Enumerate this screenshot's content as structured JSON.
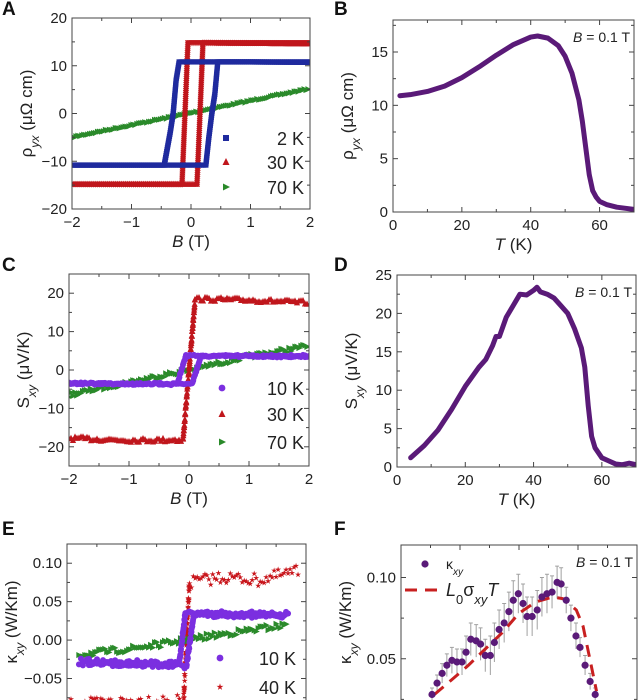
{
  "chart_data": [
    {
      "panel": "A",
      "type": "scatter",
      "xlabel": [
        {
          "t": "B",
          "i": 1
        },
        {
          "t": " (T)"
        }
      ],
      "ylabel": [
        {
          "t": "ρ"
        },
        {
          "t": "yx",
          "sub": 1,
          "i": 1
        },
        {
          "t": " (μΩ cm)"
        }
      ],
      "xlim": [
        -2,
        2
      ],
      "ylim": [
        -20,
        20
      ],
      "xticks": [
        -2,
        -1,
        0,
        1,
        2
      ],
      "xticklabels": [
        "−2",
        "−1",
        "0",
        "1",
        "2"
      ],
      "yticks": [
        -20,
        -10,
        0,
        10,
        20
      ],
      "yticklabels": [
        "−20",
        "−10",
        "0",
        "10",
        "20"
      ],
      "legend": [
        "2 K",
        "30 K",
        "70 K"
      ],
      "series": [
        {
          "name": "2 K",
          "color": "#1f2a9e",
          "branches": [
            {
              "x": [
                -2,
                -1,
                0,
                0.25,
                0.3,
                0.35,
                0.4,
                0.45,
                1,
                2
              ],
              "y": [
                -10.8,
                -10.8,
                -10.8,
                -10.8,
                -5,
                0,
                4,
                10.8,
                10.8,
                10.7
              ]
            },
            {
              "x": [
                2,
                1,
                0,
                -0.2,
                -0.25,
                -0.3,
                -0.35,
                -0.45,
                -1,
                -2
              ],
              "y": [
                10.8,
                10.8,
                10.8,
                10.8,
                7,
                0,
                -4,
                -10.8,
                -10.8,
                -10.8
              ]
            }
          ]
        },
        {
          "name": "30 K",
          "color": "#c0161c",
          "branches": [
            {
              "x": [
                -2,
                -1,
                0.0,
                0.1,
                0.2,
                1,
                2
              ],
              "y": [
                -14.8,
                -14.8,
                -14.8,
                -14.8,
                14.8,
                14.7,
                14.6
              ]
            },
            {
              "x": [
                2,
                1,
                0.05,
                -0.05,
                -0.15,
                -1,
                -2
              ],
              "y": [
                14.8,
                14.8,
                14.8,
                14.8,
                -14.8,
                -14.8,
                -14.8
              ]
            }
          ]
        },
        {
          "name": "70 K",
          "color": "#2a8a2a",
          "branches": [
            {
              "x": [
                -2,
                2
              ],
              "y": [
                -5,
                5.2
              ]
            }
          ]
        }
      ]
    },
    {
      "panel": "B",
      "type": "line",
      "xlabel": [
        {
          "t": "T",
          "i": 1
        },
        {
          "t": " (K)"
        }
      ],
      "ylabel": [
        {
          "t": "ρ"
        },
        {
          "t": "yx",
          "sub": 1,
          "i": 1
        },
        {
          "t": " (μΩ cm)"
        }
      ],
      "xlim": [
        0,
        70
      ],
      "ylim": [
        0,
        18
      ],
      "xticks": [
        0,
        20,
        40,
        60
      ],
      "xticklabels": [
        "0",
        "20",
        "40",
        "60"
      ],
      "yticks": [
        0,
        5,
        10,
        15
      ],
      "yticklabels": [
        "0",
        "5",
        "10",
        "15"
      ],
      "annotation": [
        {
          "t": "B",
          "i": 1
        },
        {
          "t": " = 0.1 T"
        }
      ],
      "series": [
        {
          "color": "#5a1a78",
          "x": [
            2,
            5,
            10,
            15,
            20,
            25,
            30,
            35,
            40,
            42,
            45,
            48,
            50,
            52,
            54,
            55,
            56,
            57,
            58,
            59,
            60,
            62,
            65,
            70
          ],
          "y": [
            10.9,
            11,
            11.3,
            11.8,
            12.6,
            13.6,
            14.7,
            15.7,
            16.4,
            16.5,
            16.3,
            15.6,
            14.6,
            13,
            10.5,
            8.5,
            6,
            3.5,
            2,
            1.4,
            1,
            0.7,
            0.45,
            0.25
          ]
        }
      ]
    },
    {
      "panel": "C",
      "type": "scatter",
      "xlabel": [
        {
          "t": "B",
          "i": 1
        },
        {
          "t": " (T)"
        }
      ],
      "ylabel": [
        {
          "t": "S"
        },
        {
          "t": "xy",
          "sub": 1,
          "i": 1
        },
        {
          "t": " (μV/K)"
        }
      ],
      "xlim": [
        -2,
        2
      ],
      "ylim": [
        -25,
        25
      ],
      "xticks": [
        -2,
        -1,
        0,
        1,
        2
      ],
      "xticklabels": [
        "−2",
        "−1",
        "0",
        "1",
        "2"
      ],
      "yticks": [
        -20,
        -10,
        0,
        10,
        20
      ],
      "yticklabels": [
        "−20",
        "−10",
        "0",
        "10",
        "20"
      ],
      "legend": [
        "10 K",
        "30 K",
        "70 K"
      ],
      "series": [
        {
          "name": "10 K",
          "color": "#7b2fe0",
          "branches": [
            {
              "x": [
                -2,
                0.05,
                0.2,
                2
              ],
              "y": [
                -3.5,
                -3.6,
                3.6,
                3.5
              ]
            },
            {
              "x": [
                2,
                -0.05,
                -0.2,
                -2
              ],
              "y": [
                3.7,
                3.7,
                -3.7,
                -3.5
              ]
            }
          ]
        },
        {
          "name": "30 K",
          "color": "#c0161c",
          "branches": [
            {
              "x": [
                -2,
                -1,
                -0.1,
                0.1,
                1,
                2
              ],
              "y": [
                -17.8,
                -18.3,
                -18.2,
                18.5,
                18.2,
                17.5
              ]
            }
          ]
        },
        {
          "name": "70 K",
          "color": "#2a8a2a",
          "branches": [
            {
              "x": [
                -2,
                -1,
                0,
                1,
                2
              ],
              "y": [
                -6.5,
                -3.2,
                0,
                3.5,
                6.3
              ]
            }
          ]
        }
      ]
    },
    {
      "panel": "D",
      "type": "line",
      "xlabel": [
        {
          "t": "T",
          "i": 1
        },
        {
          "t": " (K)"
        }
      ],
      "ylabel": [
        {
          "t": "S"
        },
        {
          "t": "xy",
          "sub": 1,
          "i": 1
        },
        {
          "t": " (μV/K)"
        }
      ],
      "xlim": [
        0,
        70
      ],
      "ylim": [
        0,
        25
      ],
      "xticks": [
        0,
        20,
        40,
        60
      ],
      "xticklabels": [
        "0",
        "20",
        "40",
        "60"
      ],
      "yticks": [
        0,
        5,
        10,
        15,
        20,
        25
      ],
      "yticklabels": [
        "0",
        "5",
        "10",
        "15",
        "20",
        "25"
      ],
      "annotation": [
        {
          "t": "B",
          "i": 1
        },
        {
          "t": " = 0.1 T"
        }
      ],
      "series": [
        {
          "color": "#5a1a78",
          "x": [
            4,
            8,
            12,
            16,
            20,
            24,
            26,
            28,
            29,
            30,
            32,
            34,
            36,
            38,
            40,
            41,
            42,
            44,
            46,
            48,
            50,
            52,
            54,
            55,
            56,
            57,
            58,
            60,
            62,
            64,
            66,
            68,
            70
          ],
          "y": [
            1.2,
            2.8,
            4.8,
            7.5,
            10.5,
            13,
            14,
            15.8,
            17,
            17,
            19.5,
            21,
            22.5,
            22.4,
            23,
            23.4,
            22.8,
            22.5,
            22,
            21,
            20,
            18,
            15.5,
            13,
            8,
            4,
            2.5,
            1.2,
            0.8,
            0.4,
            0.3,
            0.5,
            0.3
          ]
        }
      ]
    },
    {
      "panel": "E",
      "type": "scatter",
      "ylabel": [
        {
          "t": "κ"
        },
        {
          "t": "xy",
          "sub": 1,
          "i": 1
        },
        {
          "t": " (W/Km)"
        }
      ],
      "xlim": [
        -2,
        2
      ],
      "ylim": [
        -0.13,
        0.125
      ],
      "yticks": [
        -0.05,
        0,
        0.05,
        0.1
      ],
      "yticklabels": [
        "−0.05",
        "0.00",
        "0.05",
        "0.10"
      ],
      "legend": [
        "10 K",
        "40 K"
      ],
      "series": [
        {
          "name": "10 K",
          "color": "#7b2fe0",
          "branches": [
            {
              "x": [
                -1.8,
                0.0,
                0.12,
                1.7
              ],
              "y": [
                -0.03,
                -0.034,
                0.033,
                0.031
              ]
            },
            {
              "x": [
                1.7,
                -0.02,
                -0.12,
                -1.8
              ],
              "y": [
                0.034,
                0.035,
                -0.03,
                -0.027
              ]
            }
          ]
        },
        {
          "name": "40 K",
          "color": "#c8141a",
          "branches": [
            {
              "x": [
                -2,
                -0.6,
                -0.05,
                0.05,
                0.6,
                1.2,
                1.9
              ],
              "y": [
                -0.085,
                -0.078,
                -0.08,
                0.075,
                0.082,
                0.078,
                0.09
              ]
            }
          ]
        },
        {
          "color": "#2a8a2a",
          "branches": [
            {
              "x": [
                -1.8,
                -1,
                -0.3,
                0.3,
                1,
                1.7
              ],
              "y": [
                -0.019,
                -0.012,
                -0.004,
                0.004,
                0.012,
                0.02
              ]
            }
          ]
        }
      ]
    },
    {
      "panel": "F",
      "type": "scatter",
      "ylabel": [
        {
          "t": "κ"
        },
        {
          "t": "xy",
          "sub": 1,
          "i": 1
        },
        {
          "t": " (W/Km)"
        }
      ],
      "xlim": [
        0,
        70
      ],
      "ylim": [
        0,
        0.12
      ],
      "yticks": [
        0.05,
        0.1
      ],
      "yticklabels": [
        "0.05",
        "0.10"
      ],
      "annotation": [
        {
          "t": "B",
          "i": 1
        },
        {
          "t": " = 0.1 T"
        }
      ],
      "legend": [
        [
          {
            "t": "κ"
          },
          {
            "t": "xy",
            "sub": 1,
            "i": 1
          }
        ],
        [
          {
            "t": "L",
            "i": 1
          },
          {
            "t": "0",
            "sub": 1
          },
          {
            "t": "σ"
          },
          {
            "t": "xy",
            "sub": 1,
            "i": 1
          },
          {
            "t": "T",
            "i": 1
          }
        ]
      ],
      "series": [
        {
          "name": "κxy",
          "color": "#5a1a78",
          "errorbar_color": "#a0a0a0",
          "x": [
            9.2,
            10.7,
            12.2,
            13.6,
            15.1,
            16.6,
            18.1,
            19.3,
            20.7,
            22.3,
            23.6,
            25,
            26.5,
            27.7,
            29.1,
            30.6,
            32,
            33.3,
            34.8,
            36.2,
            37.4,
            38.9,
            40.4,
            41.8,
            43.3,
            44.8,
            46.3,
            47.5,
            49,
            50.4,
            51.9,
            53.1,
            54.6,
            56.1,
            57.6
          ],
          "y": [
            0.028,
            0.035,
            0.041,
            0.046,
            0.049,
            0.048,
            0.048,
            0.054,
            0.062,
            0.061,
            0.059,
            0.052,
            0.052,
            0.06,
            0.068,
            0.072,
            0.079,
            0.086,
            0.09,
            0.084,
            0.076,
            0.076,
            0.08,
            0.088,
            0.09,
            0.091,
            0.097,
            0.096,
            0.086,
            0.075,
            0.064,
            0.057,
            0.046,
            0.036,
            0.028
          ],
          "err": [
            0.004,
            0.005,
            0.006,
            0.007,
            0.008,
            0.008,
            0.008,
            0.01,
            0.01,
            0.01,
            0.01,
            0.01,
            0.012,
            0.012,
            0.012,
            0.012,
            0.012,
            0.012,
            0.012,
            0.012,
            0.012,
            0.012,
            0.012,
            0.012,
            0.012,
            0.01,
            0.01,
            0.01,
            0.008,
            0.008,
            0.008,
            0.006,
            0.006,
            0.005,
            0.004
          ]
        },
        {
          "name": "L0σxyT",
          "color": "#c82020",
          "style": "dashed",
          "x": [
            9.9,
            15,
            20,
            25,
            30,
            35,
            40,
            45,
            48,
            52,
            54,
            56,
            58
          ],
          "y": [
            0.028,
            0.037,
            0.046,
            0.056,
            0.066,
            0.078,
            0.085,
            0.088,
            0.087,
            0.08,
            0.07,
            0.05,
            0.03
          ]
        }
      ]
    }
  ],
  "panel_letters": [
    "A",
    "B",
    "C",
    "D",
    "E",
    "F"
  ]
}
